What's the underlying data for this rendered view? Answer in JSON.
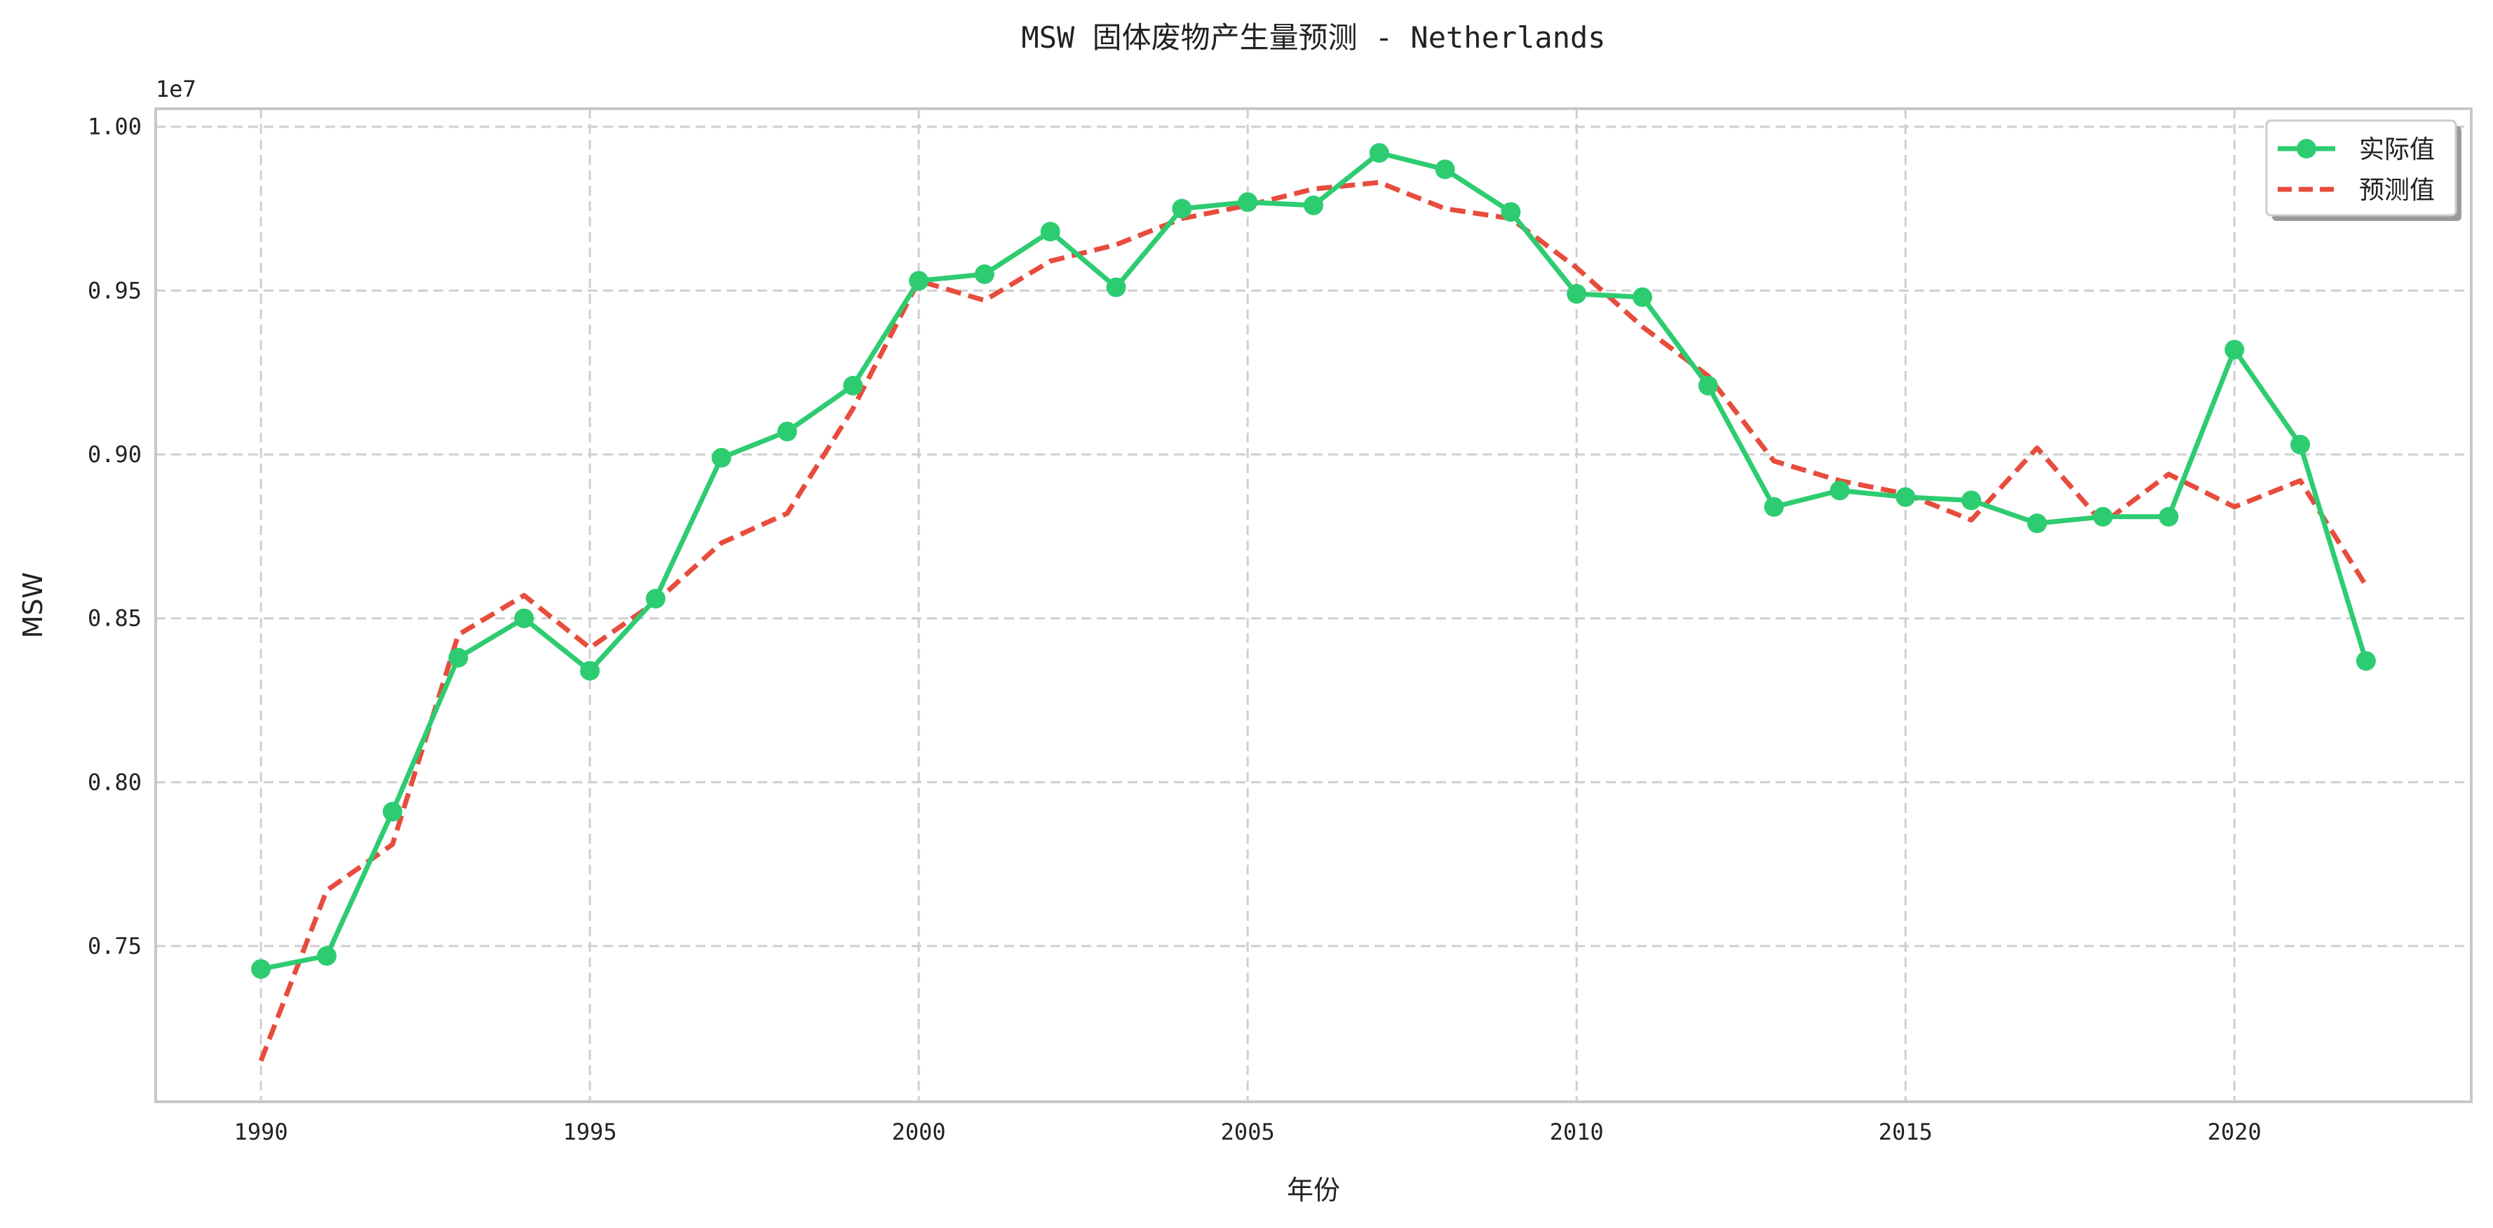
{
  "chart_data": {
    "type": "line",
    "title": "MSW 固体废物产生量预测 - Netherlands",
    "xlabel": "年份",
    "ylabel": "MSW",
    "y_offset_label": "1e7",
    "xlim": [
      1988.4,
      2023.6
    ],
    "ylim": [
      0.7025,
      1.0055
    ],
    "x_ticks": [
      1990,
      1995,
      2000,
      2005,
      2010,
      2015,
      2020
    ],
    "y_ticks": [
      "0.75",
      "0.80",
      "0.85",
      "0.90",
      "0.95",
      "1.00"
    ],
    "grid": true,
    "legend_position": "top-right",
    "x": [
      1990,
      1991,
      1992,
      1993,
      1994,
      1995,
      1996,
      1997,
      1998,
      1999,
      2000,
      2001,
      2002,
      2003,
      2004,
      2005,
      2006,
      2007,
      2008,
      2009,
      2010,
      2011,
      2012,
      2013,
      2014,
      2015,
      2016,
      2017,
      2018,
      2019,
      2020,
      2021,
      2022
    ],
    "series": [
      {
        "name": "实际值",
        "color": "#2ecc71",
        "style": "solid-markers",
        "values": [
          0.743,
          0.747,
          0.791,
          0.838,
          0.85,
          0.834,
          0.856,
          0.899,
          0.907,
          0.921,
          0.953,
          0.955,
          0.968,
          0.951,
          0.975,
          0.977,
          0.976,
          0.992,
          0.987,
          0.974,
          0.949,
          0.948,
          0.921,
          0.884,
          0.889,
          0.887,
          0.886,
          0.879,
          0.881,
          0.881,
          0.932,
          0.903,
          0.837
        ]
      },
      {
        "name": "预测值",
        "color": "#e74c3c",
        "style": "dashed",
        "values": [
          0.715,
          0.767,
          0.781,
          0.845,
          0.857,
          0.841,
          0.855,
          0.873,
          0.882,
          0.914,
          0.953,
          0.947,
          0.959,
          0.964,
          0.972,
          0.976,
          0.981,
          0.983,
          0.975,
          0.972,
          0.957,
          0.939,
          0.924,
          0.898,
          0.892,
          0.888,
          0.88,
          0.902,
          0.879,
          0.894,
          0.884,
          0.892,
          0.86
        ]
      }
    ]
  }
}
